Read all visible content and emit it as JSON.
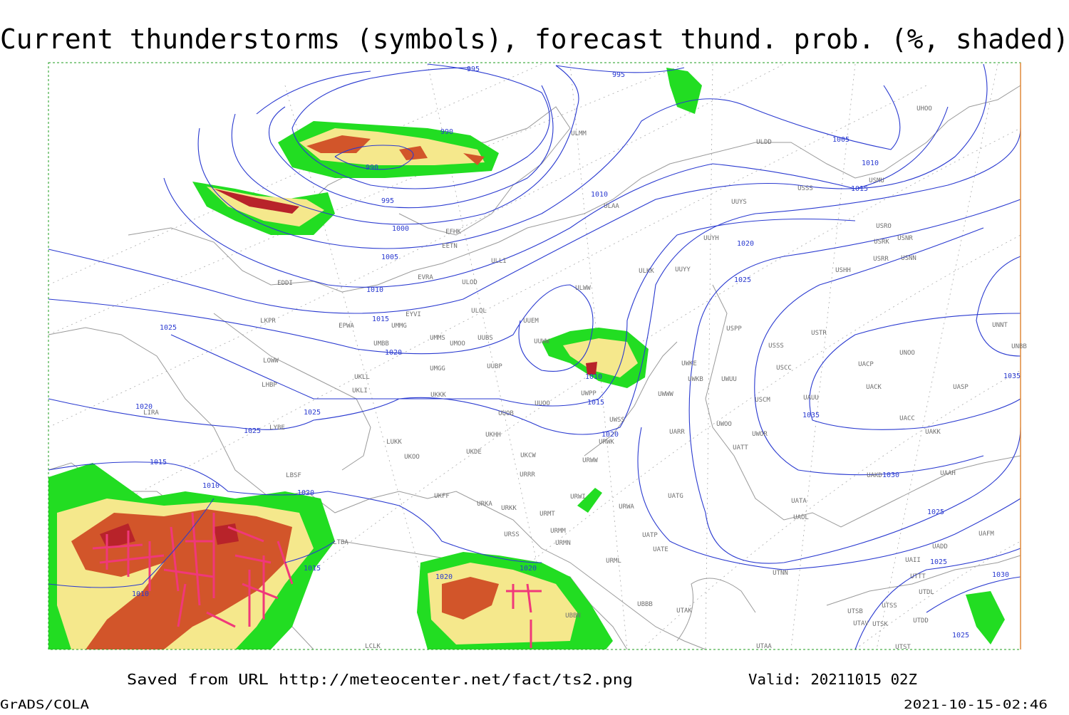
{
  "header": {
    "title": "Current thunderstorms (symbols), forecast thund. prob. (%, shaded)"
  },
  "map": {
    "isobar_labels": [
      "995",
      "995",
      "990",
      "990",
      "995",
      "1000",
      "1005",
      "1010",
      "1015",
      "1020",
      "1025",
      "1020",
      "1025",
      "1025",
      "1015",
      "1010",
      "1020",
      "1015",
      "1010",
      "1020",
      "1020",
      "1010",
      "1015",
      "1020",
      "1010",
      "1005",
      "1010",
      "1015",
      "1020",
      "1025",
      "1035",
      "1030",
      "1025",
      "1025",
      "1030",
      "1025",
      "1035"
    ],
    "stations": [
      "ULMM",
      "ULDD",
      "UHOO",
      "USMU",
      "USSS",
      "ULAA",
      "UUYS",
      "UUYH",
      "USRO",
      "USRK",
      "USNR",
      "USRR",
      "USNN",
      "EFHK",
      "EETN",
      "ULLI",
      "UUYY",
      "ULKK",
      "USHH",
      "EVRA",
      "ULOD",
      "EDDI",
      "ULWW",
      "ULOL",
      "EYVI",
      "UUEM",
      "EPWA",
      "UMMG",
      "LKPR",
      "USPP",
      "USTR",
      "UMMS",
      "UMOO",
      "UUBS",
      "UUWW",
      "USSS",
      "UNOO",
      "UNNT",
      "UNBB",
      "UMBB",
      "LOWW",
      "UWKE",
      "UACP",
      "USCC",
      "UKLL",
      "UMGG",
      "UUBP",
      "UWKB",
      "UWUU",
      "UACK",
      "UASP",
      "LHBP",
      "UKLI",
      "UKKK",
      "UWPP",
      "UWWW",
      "USCM",
      "UAUU",
      "UUOO",
      "LYBE",
      "LIRA",
      "UUOB",
      "UACC",
      "UWSS",
      "UWOO",
      "UARR",
      "UWOR",
      "UAKK",
      "LUKK",
      "UKHH",
      "UKOO",
      "UKDE",
      "URWK",
      "UATT",
      "UKCW",
      "URWW",
      "LBSF",
      "URRR",
      "UAKD",
      "UAAH",
      "UKFF",
      "UATG",
      "URWI",
      "UATA",
      "URKA",
      "URKK",
      "URWA",
      "URMT",
      "UAOL",
      "LTBA",
      "URSS",
      "URMM",
      "UATP",
      "URMN",
      "UATE",
      "UAFM",
      "UADD",
      "URML",
      "UAII",
      "UTNN",
      "UTTT",
      "UTDL",
      "UBBB",
      "UTAK",
      "UTSB",
      "UTSS",
      "UTAV",
      "UTSK",
      "UTDD",
      "UTAA",
      "UTST",
      "LCLK",
      "UBBN"
    ]
  },
  "footer": {
    "source": "Saved from URL http://meteocenter.net/fact/ts2.png",
    "valid": "Valid: 20211015 02Z",
    "software": "GrADS/COLA",
    "timestamp": "2021-10-15-02:46"
  }
}
